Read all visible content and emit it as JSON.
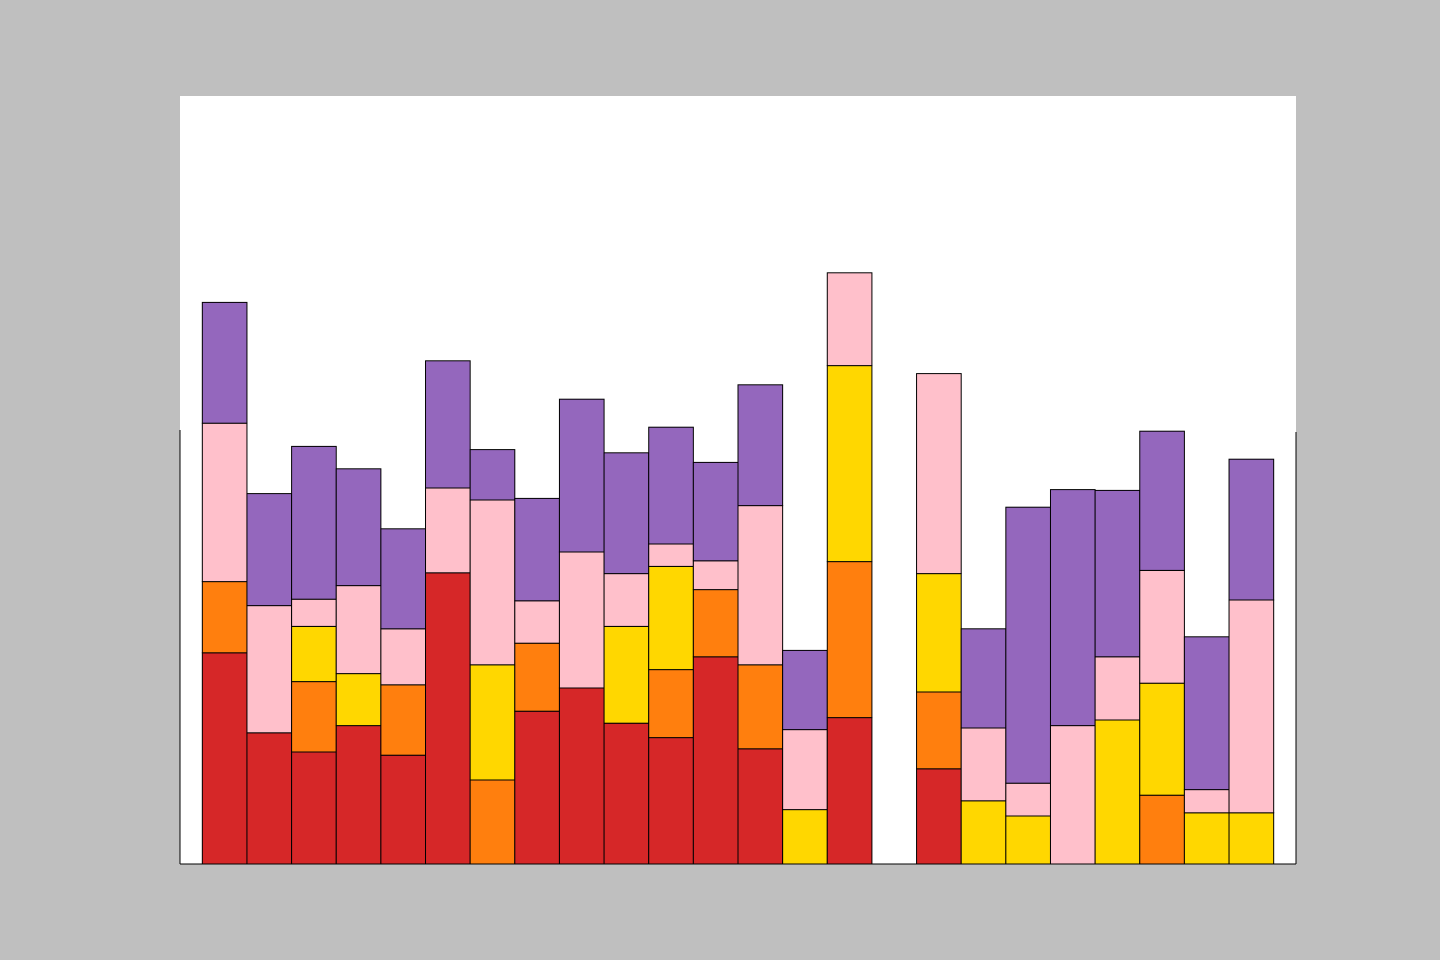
{
  "chart_data": {
    "type": "stacked_bar",
    "categories": [
      null,
      null,
      null,
      null,
      null,
      null,
      null,
      null,
      null,
      null,
      null,
      null,
      null,
      null,
      null,
      null,
      null,
      null,
      null,
      null,
      null,
      null,
      null,
      null
    ],
    "ylim": [
      0,
      96
    ],
    "series": [
      {
        "color": "#d62728",
        "values": [
          26.4,
          16.4,
          14,
          17.3,
          13.6,
          36.4,
          0,
          19.1,
          22,
          17.6,
          15.8,
          25.9,
          14.4,
          0,
          18.3,
          0,
          11.9,
          0,
          0,
          0,
          0,
          0,
          0,
          0
        ]
      },
      {
        "color": "#ff7f0e",
        "values": [
          8.9,
          0,
          8.8,
          0,
          8.8,
          0,
          10.5,
          8.5,
          0,
          0,
          8.5,
          8.4,
          10.5,
          0,
          19.5,
          0,
          9.6,
          0,
          0,
          0,
          0,
          8.6,
          0,
          0
        ]
      },
      {
        "color": "#ffd700",
        "values": [
          0,
          0,
          6.9,
          6.5,
          0,
          0,
          14.4,
          0,
          0,
          12.1,
          12.9,
          0,
          0,
          6.8,
          24.5,
          0,
          14.8,
          7.9,
          6,
          0,
          18,
          14,
          6.4,
          6.4
        ]
      },
      {
        "color": "#ffc0cb",
        "values": [
          19.8,
          15.9,
          3.4,
          11,
          7,
          10.6,
          20.6,
          5.3,
          17,
          6.6,
          2.8,
          3.6,
          19.9,
          10,
          11.6,
          0,
          25,
          9.1,
          4.1,
          17.3,
          7.9,
          14.1,
          2.9,
          26.6
        ]
      },
      {
        "color": "#9467bd",
        "values": [
          15.1,
          14,
          19.1,
          14.6,
          12.5,
          15.9,
          6.3,
          12.8,
          19.1,
          15.1,
          14.6,
          12.3,
          15.1,
          9.9,
          0,
          0,
          0,
          12.4,
          34.5,
          29.5,
          20.8,
          17.4,
          19.1,
          17.6
        ]
      }
    ]
  }
}
